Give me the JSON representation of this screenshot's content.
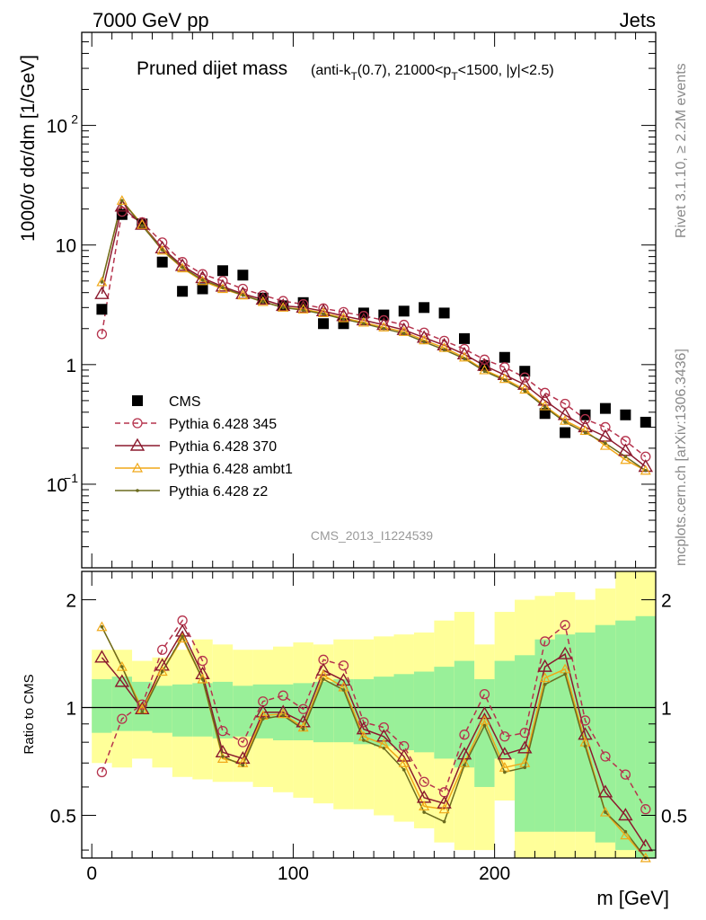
{
  "header": {
    "energy_label": "7000 GeV pp",
    "process_label": "Jets"
  },
  "side_labels": {
    "rivet": "Rivet 3.1.10, ≥ 2.2M events",
    "mcplots": "mcplots.cern.ch [arXiv:1306.3436]"
  },
  "colors": {
    "cms": "#000000",
    "pythia_345": "#b5334d",
    "pythia_370": "#8b1a2e",
    "pythia_ambt1": "#f0a818",
    "pythia_z2": "#6b6b1e",
    "band_inner": "#99f099",
    "band_outer": "#ffff99"
  },
  "chart_data": [
    {
      "type": "scatter",
      "title": "Pruned dijet mass",
      "title_detail": "(anti-k_T(0.7), 21000<p_T<1500, |y|<2.5)",
      "ylabel": "1000/σ dσ/dm [1/GeV]",
      "xlabel": "",
      "yscale": "log",
      "ylim": [
        0.02,
        600
      ],
      "xlim": [
        -5,
        280
      ],
      "y_ticks": [
        "10^{-1}",
        "1",
        "10",
        "10^{2}"
      ],
      "watermark": "CMS_2013_I1224539",
      "legend_position": "lower-left",
      "x": [
        5,
        15,
        25,
        35,
        45,
        55,
        65,
        75,
        85,
        95,
        105,
        115,
        125,
        135,
        145,
        155,
        165,
        175,
        185,
        195,
        205,
        215,
        225,
        235,
        245,
        255,
        265,
        275
      ],
      "series": [
        {
          "name": "CMS",
          "marker": "square",
          "values": [
            2.9,
            18,
            15,
            7.2,
            4.1,
            4.3,
            6.1,
            5.6,
            3.6,
            3.1,
            3.3,
            2.2,
            2.2,
            2.7,
            2.6,
            2.8,
            3.0,
            2.7,
            1.65,
            0.98,
            1.15,
            0.88,
            0.39,
            0.27,
            0.38,
            0.43,
            0.38,
            0.33
          ]
        },
        {
          "name": "Pythia 6.428 345",
          "marker": "open-circle",
          "dashed": true,
          "values": [
            1.8,
            19,
            15.5,
            10.5,
            7.2,
            5.7,
            5.0,
            4.3,
            3.8,
            3.4,
            3.2,
            2.95,
            2.75,
            2.55,
            2.35,
            2.15,
            1.85,
            1.58,
            1.35,
            1.1,
            0.95,
            0.78,
            0.58,
            0.47,
            0.35,
            0.3,
            0.23,
            0.17
          ]
        },
        {
          "name": "Pythia 6.428 370",
          "marker": "open-triangle",
          "dashed": false,
          "values": [
            3.9,
            21,
            14.8,
            9.4,
            6.7,
            5.3,
            4.5,
            3.9,
            3.5,
            3.1,
            3.0,
            2.8,
            2.55,
            2.35,
            2.15,
            1.95,
            1.68,
            1.45,
            1.22,
            0.98,
            0.82,
            0.68,
            0.5,
            0.38,
            0.3,
            0.25,
            0.19,
            0.14
          ]
        },
        {
          "name": "Pythia 6.428 ambt1",
          "marker": "open-triangle-small",
          "dashed": false,
          "values": [
            4.9,
            23.5,
            14.8,
            9.0,
            6.4,
            5.0,
            4.3,
            3.8,
            3.35,
            3.0,
            2.9,
            2.7,
            2.45,
            2.25,
            2.05,
            1.88,
            1.6,
            1.38,
            1.15,
            0.9,
            0.76,
            0.62,
            0.45,
            0.34,
            0.28,
            0.21,
            0.16,
            0.13
          ]
        },
        {
          "name": "Pythia 6.428 z2",
          "marker": "dot",
          "dashed": false,
          "values": [
            4.9,
            23.5,
            14.5,
            9.1,
            6.5,
            5.1,
            4.4,
            3.8,
            3.35,
            3.0,
            2.85,
            2.65,
            2.4,
            2.2,
            2.0,
            1.82,
            1.55,
            1.33,
            1.12,
            0.88,
            0.74,
            0.6,
            0.44,
            0.33,
            0.27,
            0.22,
            0.17,
            0.13
          ]
        }
      ]
    },
    {
      "type": "line",
      "title": "",
      "ylabel": "Ratio to CMS",
      "xlabel": "m [GeV]",
      "yscale": "log",
      "ylim": [
        0.38,
        2.4
      ],
      "xlim": [
        -5,
        280
      ],
      "x_ticks": [
        0,
        100,
        200
      ],
      "y_ticks": [
        0.5,
        1,
        2
      ],
      "x": [
        5,
        15,
        25,
        35,
        45,
        55,
        65,
        75,
        85,
        95,
        105,
        115,
        125,
        135,
        145,
        155,
        165,
        175,
        185,
        195,
        205,
        215,
        225,
        235,
        245,
        255,
        265,
        275
      ],
      "bands": {
        "inner_upper": [
          1.2,
          1.22,
          1.18,
          1.15,
          1.16,
          1.17,
          1.18,
          1.15,
          1.16,
          1.16,
          1.17,
          1.18,
          1.2,
          1.2,
          1.22,
          1.24,
          1.26,
          1.3,
          1.35,
          1.2,
          1.35,
          1.4,
          1.55,
          1.6,
          1.62,
          1.7,
          1.75,
          1.8
        ],
        "inner_lower": [
          0.85,
          0.86,
          0.86,
          0.85,
          0.83,
          0.83,
          0.82,
          0.83,
          0.82,
          0.81,
          0.81,
          0.8,
          0.8,
          0.79,
          0.78,
          0.76,
          0.75,
          0.72,
          0.68,
          0.6,
          0.72,
          0.45,
          0.45,
          0.45,
          0.45,
          0.42,
          0.4,
          0.38
        ],
        "outer_upper": [
          1.45,
          1.45,
          1.35,
          1.38,
          1.45,
          1.55,
          1.5,
          1.45,
          1.45,
          1.48,
          1.52,
          1.5,
          1.55,
          1.55,
          1.58,
          1.6,
          1.62,
          1.75,
          1.85,
          1.5,
          1.85,
          2.0,
          2.05,
          2.1,
          2.0,
          2.15,
          2.4,
          2.4
        ],
        "outer_lower": [
          0.7,
          0.68,
          0.72,
          0.68,
          0.64,
          0.63,
          0.62,
          0.62,
          0.6,
          0.58,
          0.56,
          0.54,
          0.52,
          0.52,
          0.5,
          0.48,
          0.46,
          0.42,
          0.4,
          0.4,
          0.55,
          0.38,
          0.38,
          0.38,
          0.38,
          0.38,
          0.38,
          0.38
        ]
      },
      "series": [
        {
          "name": "Pythia 6.428 345",
          "values": [
            0.66,
            0.93,
            1.02,
            1.45,
            1.75,
            1.35,
            0.86,
            0.8,
            1.04,
            1.08,
            0.99,
            1.36,
            1.31,
            0.91,
            0.88,
            0.78,
            0.62,
            0.58,
            0.84,
            1.09,
            0.83,
            0.85,
            1.53,
            1.7,
            0.92,
            0.73,
            0.65,
            0.52
          ]
        },
        {
          "name": "Pythia 6.428 370",
          "values": [
            1.38,
            1.18,
            0.99,
            1.31,
            1.63,
            1.24,
            0.75,
            0.72,
            0.97,
            0.97,
            0.91,
            1.27,
            1.19,
            0.87,
            0.83,
            0.73,
            0.56,
            0.54,
            0.74,
            0.96,
            0.74,
            0.77,
            1.3,
            1.41,
            0.84,
            0.58,
            0.5,
            0.41
          ]
        },
        {
          "name": "Pythia 6.428 ambt1",
          "values": [
            1.68,
            1.3,
            0.99,
            1.26,
            1.56,
            1.2,
            0.72,
            0.7,
            0.95,
            0.96,
            0.88,
            1.23,
            1.14,
            0.83,
            0.79,
            0.7,
            0.53,
            0.52,
            0.7,
            0.92,
            0.68,
            0.7,
            1.21,
            1.28,
            0.8,
            0.51,
            0.44,
            0.38
          ]
        },
        {
          "name": "Pythia 6.428 z2",
          "values": [
            1.68,
            1.3,
            0.97,
            1.26,
            1.58,
            1.2,
            0.73,
            0.69,
            0.93,
            0.95,
            0.87,
            1.2,
            1.12,
            0.81,
            0.77,
            0.67,
            0.51,
            0.48,
            0.69,
            0.89,
            0.66,
            0.68,
            1.16,
            1.24,
            0.78,
            0.51,
            0.45,
            0.38
          ]
        }
      ]
    }
  ]
}
